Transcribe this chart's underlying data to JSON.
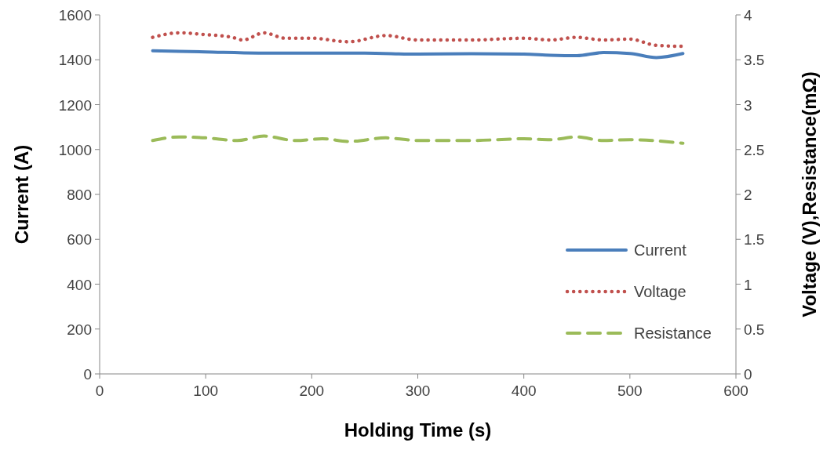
{
  "chart_data": {
    "type": "line",
    "xlabel": "Holding Time (s)",
    "ylabel": "Current (A)",
    "y2label": "Voltage (V),Resistance(mΩ)",
    "xlim": [
      0,
      600
    ],
    "xticks": [
      0,
      100,
      200,
      300,
      400,
      500,
      600
    ],
    "ylim": [
      0,
      1600
    ],
    "yticks": [
      0,
      200,
      400,
      600,
      800,
      1000,
      1200,
      1400,
      1600
    ],
    "y2lim": [
      0,
      4
    ],
    "y2ticks": [
      0,
      0.5,
      1,
      1.5,
      2,
      2.5,
      3,
      3.5,
      4
    ],
    "legend": "bottom right",
    "grid": false,
    "series": [
      {
        "name": "Current",
        "color": "#4a7ebb",
        "line_style": "solid",
        "x": [
          50,
          100,
          150,
          200,
          250,
          300,
          350,
          400,
          425,
          450,
          475,
          500,
          525,
          550
        ],
        "values": [
          1440,
          1435,
          1430,
          1430,
          1430,
          1425,
          1427,
          1425,
          1420,
          1418,
          1432,
          1428,
          1410,
          1428
        ]
      },
      {
        "name": "Voltage",
        "color": "#c0504d",
        "line_style": "dotted",
        "axis": "y2",
        "x": [
          50,
          75,
          100,
          125,
          135,
          155,
          175,
          200,
          235,
          270,
          300,
          350,
          400,
          425,
          450,
          475,
          500,
          525,
          550
        ],
        "values": [
          3.75,
          3.8,
          3.78,
          3.75,
          3.72,
          3.8,
          3.74,
          3.74,
          3.7,
          3.77,
          3.72,
          3.72,
          3.74,
          3.72,
          3.75,
          3.72,
          3.73,
          3.66,
          3.65
        ]
      },
      {
        "name": "Resistance",
        "color": "#9bbb59",
        "line_style": "dashed",
        "axis": "y2",
        "x": [
          50,
          75,
          100,
          130,
          155,
          185,
          210,
          235,
          270,
          300,
          350,
          400,
          425,
          450,
          475,
          500,
          550
        ],
        "values": [
          2.6,
          2.64,
          2.63,
          2.6,
          2.65,
          2.6,
          2.62,
          2.59,
          2.63,
          2.6,
          2.6,
          2.62,
          2.61,
          2.64,
          2.6,
          2.61,
          2.57
        ]
      }
    ]
  }
}
